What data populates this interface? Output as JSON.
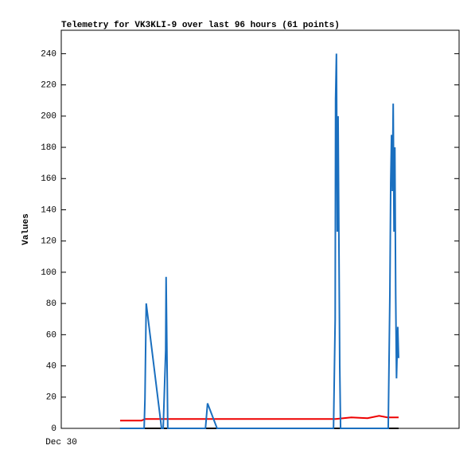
{
  "chart_data": {
    "type": "line",
    "title": "Telemetry for VK3KLI-9 over last 96 hours (61 points)",
    "y_label": "Values",
    "xlim": [
      0,
      96
    ],
    "xticks": [
      {
        "value": 0,
        "label": "Dec 30"
      }
    ],
    "ylim": [
      0,
      255
    ],
    "yticks": [
      0,
      20,
      40,
      60,
      80,
      100,
      120,
      140,
      160,
      180,
      200,
      220,
      240
    ],
    "series": [
      {
        "color": "#000000",
        "x": [
          14.2,
          81.4
        ],
        "values": [
          0,
          0
        ]
      },
      {
        "color": "#ee0000",
        "x": [
          14.2,
          19.4,
          20.2,
          66.2,
          70.0,
          73.9,
          76.7,
          78.7,
          81.4
        ],
        "values": [
          5,
          5,
          6,
          6,
          7,
          6.5,
          8,
          7,
          7
        ]
      },
      {
        "color": "#1a6fbf",
        "x": [
          14.2,
          20.0,
          20.2,
          20.4,
          20.5,
          24.2,
          24.6,
          25.2,
          25.3,
          25.7,
          34.8,
          35.3,
          37.6,
          65.7,
          66.1,
          66.2,
          66.4,
          66.6,
          66.8,
          67.0,
          67.2,
          67.4,
          78.9,
          79.3,
          79.5,
          79.7,
          79.9,
          80.1,
          80.3,
          80.5,
          80.7,
          80.9,
          81.1,
          81.2,
          81.4
        ],
        "values": [
          0,
          0,
          19,
          60,
          80,
          0,
          0,
          50,
          97,
          0,
          0,
          16,
          0,
          0,
          70,
          211,
          240,
          126,
          200,
          121,
          40,
          0,
          0,
          86,
          157,
          188,
          152,
          208,
          126,
          180,
          86,
          32,
          55,
          65,
          45
        ]
      }
    ]
  }
}
